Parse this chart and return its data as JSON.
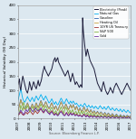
{
  "ylabel": "Historical Volatility (90 Day)",
  "xlabel": "Source: Bloomberg Finance L.P.",
  "ylim": [
    0,
    400
  ],
  "yticks": [
    0,
    50,
    100,
    150,
    200,
    250,
    300,
    350,
    400
  ],
  "xtick_labels": [
    "2007",
    "2008",
    "2009",
    "2010",
    "2011",
    "2012",
    "2013",
    "2014",
    "2015",
    "2016",
    "2017"
  ],
  "legend_entries": [
    {
      "label": "Electricity (Peak)",
      "color": "#1c1c3a",
      "lw": 0.7
    },
    {
      "label": "Natural Gas",
      "color": "#00aeef",
      "lw": 0.6
    },
    {
      "label": "Gasoline",
      "color": "#2e64b0",
      "lw": 0.6
    },
    {
      "label": "Heating Oil",
      "color": "#c8a040",
      "lw": 0.6
    },
    {
      "label": "10YR US Treasury",
      "color": "#a03030",
      "lw": 0.6
    },
    {
      "label": "S&P 500",
      "color": "#80b040",
      "lw": 0.6
    },
    {
      "label": "Gold",
      "color": "#6a30a0",
      "lw": 0.6
    }
  ],
  "plot_bg": "#dce8f0",
  "fig_bg": "#dce8f0",
  "grid_color": "#ffffff",
  "electricity": [
    120,
    130,
    140,
    110,
    100,
    120,
    135,
    150,
    140,
    130,
    120,
    110,
    100,
    95,
    90,
    100,
    110,
    130,
    120,
    110,
    100,
    110,
    120,
    130,
    125,
    115,
    110,
    105,
    115,
    125,
    135,
    120,
    115,
    125,
    130,
    140,
    155,
    165,
    175,
    185,
    175,
    170,
    165,
    160,
    155,
    150,
    155,
    160,
    165,
    170,
    175,
    185,
    195,
    205,
    210,
    215,
    200,
    205,
    210,
    215,
    200,
    195,
    190,
    185,
    180,
    175,
    170,
    165,
    160,
    155,
    150,
    155,
    160,
    165,
    170,
    160,
    150,
    140,
    130,
    140,
    150,
    160,
    150,
    140,
    130,
    120,
    125,
    130,
    125,
    120,
    115,
    110,
    115,
    120,
    115,
    110,
    355,
    310,
    285,
    260,
    240,
    220,
    230,
    245,
    235,
    225,
    215,
    205,
    200,
    195,
    190,
    185,
    180,
    175,
    165,
    155,
    145,
    135,
    125,
    120,
    115,
    110,
    105,
    100,
    95,
    110,
    120,
    130,
    120,
    110,
    100,
    95,
    90,
    85,
    90,
    95,
    100,
    110,
    105,
    100,
    95,
    90,
    100,
    110,
    115,
    120,
    125,
    120,
    115,
    110,
    105,
    100,
    95,
    90,
    85,
    90,
    95,
    100,
    105,
    110,
    115,
    120,
    125,
    120,
    115,
    110,
    105,
    100
  ],
  "natural_gas": [
    65,
    75,
    85,
    95,
    105,
    95,
    80,
    70,
    65,
    60,
    58,
    62,
    68,
    72,
    78,
    72,
    68,
    64,
    60,
    65,
    70,
    75,
    70,
    65,
    60,
    68,
    75,
    80,
    75,
    70,
    65,
    70,
    75,
    80,
    85,
    80,
    75,
    70,
    65,
    70,
    75,
    80,
    75,
    70,
    65,
    60,
    55,
    58,
    60,
    65,
    70,
    65,
    60,
    55,
    50,
    55,
    60,
    55,
    50,
    48,
    52,
    58,
    62,
    68,
    72,
    68,
    62,
    58,
    52,
    55,
    60,
    65,
    70,
    65,
    60,
    55,
    52,
    58,
    62,
    58,
    54,
    58,
    62,
    58,
    54,
    50,
    52,
    55,
    50,
    48,
    44,
    42,
    46,
    50,
    48,
    44,
    42,
    46,
    50,
    54,
    50,
    46,
    42,
    40,
    44,
    48,
    44,
    40,
    38,
    42,
    46,
    42,
    38,
    36,
    40,
    44,
    42,
    38,
    36,
    34,
    38,
    42,
    46,
    42,
    38,
    36,
    34,
    38,
    42,
    38,
    34,
    32,
    36,
    40,
    44,
    40,
    36,
    32,
    30,
    34,
    38,
    36,
    32,
    30,
    28,
    32,
    36,
    34,
    30,
    28,
    26,
    30,
    34,
    30,
    26,
    24,
    28,
    32,
    30,
    26,
    24,
    22,
    26,
    30,
    28,
    24,
    22,
    20
  ],
  "gasoline": [
    30,
    38,
    48,
    58,
    68,
    60,
    54,
    48,
    42,
    38,
    34,
    38,
    44,
    50,
    56,
    50,
    44,
    38,
    34,
    40,
    46,
    52,
    48,
    42,
    38,
    44,
    50,
    56,
    50,
    44,
    40,
    46,
    52,
    58,
    64,
    58,
    52,
    46,
    42,
    48,
    54,
    60,
    56,
    50,
    44,
    40,
    36,
    40,
    46,
    52,
    56,
    50,
    44,
    38,
    34,
    40,
    46,
    40,
    34,
    30,
    36,
    42,
    48,
    54,
    60,
    54,
    48,
    42,
    36,
    40,
    46,
    52,
    48,
    42,
    36,
    32,
    38,
    44,
    50,
    44,
    38,
    44,
    50,
    44,
    38,
    32,
    38,
    44,
    38,
    32,
    28,
    32,
    38,
    32,
    28,
    26,
    30,
    36,
    42,
    36,
    30,
    26,
    30,
    36,
    30,
    26,
    22,
    26,
    32,
    28,
    24,
    20,
    24,
    28,
    24,
    20,
    18,
    22,
    26,
    22,
    18,
    16,
    20,
    24,
    22,
    18,
    16,
    14,
    18,
    22,
    18,
    14,
    12,
    16,
    20,
    18,
    14,
    12,
    10,
    14,
    18,
    16,
    12,
    10,
    8,
    12,
    16,
    14,
    10,
    8,
    6,
    10,
    14,
    12,
    8,
    6,
    8,
    12,
    10,
    8,
    6,
    8,
    12,
    10,
    8,
    6,
    8,
    10
  ],
  "heating_oil": [
    28,
    36,
    46,
    56,
    66,
    58,
    52,
    46,
    40,
    36,
    32,
    36,
    42,
    48,
    54,
    48,
    42,
    36,
    32,
    38,
    44,
    50,
    46,
    40,
    36,
    42,
    48,
    54,
    48,
    42,
    38,
    44,
    50,
    56,
    62,
    56,
    50,
    44,
    40,
    46,
    52,
    58,
    54,
    48,
    42,
    38,
    34,
    38,
    44,
    50,
    54,
    48,
    42,
    36,
    32,
    38,
    44,
    38,
    32,
    28,
    34,
    40,
    46,
    52,
    58,
    52,
    46,
    40,
    34,
    38,
    44,
    50,
    46,
    40,
    34,
    30,
    36,
    42,
    48,
    42,
    36,
    42,
    48,
    42,
    36,
    30,
    36,
    42,
    36,
    30,
    26,
    30,
    36,
    30,
    26,
    24,
    28,
    34,
    40,
    34,
    28,
    24,
    28,
    34,
    28,
    24,
    20,
    24,
    30,
    26,
    22,
    18,
    22,
    26,
    22,
    18,
    16,
    20,
    24,
    20,
    16,
    14,
    18,
    22,
    20,
    16,
    14,
    12,
    16,
    20,
    16,
    12,
    10,
    14,
    18,
    16,
    12,
    10,
    8,
    12,
    16,
    14,
    10,
    8,
    6,
    10,
    14,
    12,
    8,
    6,
    4,
    8,
    12,
    10,
    6,
    4,
    6,
    10,
    8,
    6,
    4,
    6,
    10,
    8,
    6,
    4,
    6,
    8
  ],
  "treasury": [
    12,
    14,
    16,
    20,
    24,
    20,
    16,
    14,
    12,
    14,
    16,
    20,
    22,
    20,
    16,
    20,
    22,
    24,
    28,
    24,
    20,
    18,
    14,
    18,
    22,
    24,
    28,
    24,
    20,
    18,
    22,
    24,
    28,
    32,
    34,
    30,
    26,
    22,
    20,
    24,
    28,
    32,
    30,
    26,
    22,
    20,
    18,
    20,
    22,
    26,
    28,
    24,
    20,
    16,
    14,
    16,
    20,
    18,
    14,
    12,
    14,
    18,
    22,
    24,
    28,
    24,
    20,
    16,
    14,
    12,
    14,
    18,
    22,
    18,
    14,
    12,
    14,
    18,
    22,
    18,
    14,
    16,
    20,
    18,
    14,
    12,
    14,
    18,
    14,
    12,
    10,
    12,
    14,
    12,
    10,
    8,
    10,
    14,
    16,
    14,
    10,
    8,
    10,
    14,
    10,
    8,
    6,
    8,
    12,
    10,
    8,
    6,
    8,
    12,
    10,
    8,
    6,
    6,
    10,
    8,
    6,
    6,
    8,
    10,
    8,
    6,
    6,
    4,
    8,
    10,
    8,
    6,
    4,
    6,
    10,
    8,
    6,
    4,
    4,
    6,
    10,
    8,
    6,
    4,
    4,
    6,
    8,
    6,
    4,
    4,
    2,
    6,
    8,
    6,
    4,
    4,
    2,
    6,
    8,
    6,
    4,
    4,
    2,
    6,
    8,
    6,
    4,
    4
  ],
  "sp500": [
    14,
    18,
    22,
    32,
    48,
    40,
    34,
    28,
    58,
    52,
    46,
    40,
    34,
    40,
    46,
    40,
    34,
    28,
    24,
    30,
    36,
    42,
    38,
    32,
    26,
    32,
    38,
    44,
    38,
    32,
    28,
    34,
    40,
    46,
    52,
    46,
    40,
    34,
    28,
    34,
    40,
    46,
    42,
    36,
    30,
    26,
    22,
    26,
    32,
    38,
    40,
    34,
    28,
    22,
    18,
    22,
    28,
    24,
    18,
    14,
    18,
    24,
    30,
    36,
    42,
    36,
    30,
    24,
    18,
    28,
    34,
    40,
    36,
    30,
    24,
    18,
    24,
    30,
    26,
    20,
    26,
    32,
    26,
    20,
    16,
    22,
    26,
    20,
    16,
    20,
    26,
    20,
    16,
    20,
    26,
    20,
    16,
    22,
    26,
    20,
    16,
    14,
    18,
    22,
    18,
    14,
    10,
    14,
    20,
    16,
    12,
    10,
    14,
    18,
    14,
    10,
    8,
    10,
    14,
    12,
    8,
    6,
    10,
    14,
    10,
    8,
    6,
    6,
    10,
    12,
    10,
    8,
    6,
    6,
    10,
    10,
    8,
    6,
    4,
    6,
    10,
    8,
    6,
    4,
    4,
    6,
    10,
    8,
    6,
    4,
    2,
    6,
    10,
    8,
    6,
    4,
    2,
    6,
    8,
    6,
    4,
    4,
    2,
    4,
    8,
    6,
    4,
    2
  ],
  "gold": [
    14,
    16,
    20,
    24,
    30,
    26,
    22,
    18,
    14,
    18,
    22,
    28,
    32,
    28,
    24,
    28,
    32,
    34,
    38,
    34,
    30,
    28,
    24,
    28,
    32,
    34,
    38,
    34,
    30,
    28,
    26,
    30,
    32,
    36,
    38,
    32,
    28,
    26,
    22,
    26,
    30,
    32,
    30,
    26,
    22,
    20,
    18,
    14,
    18,
    22,
    24,
    20,
    18,
    14,
    12,
    14,
    18,
    16,
    12,
    10,
    12,
    16,
    20,
    22,
    24,
    22,
    18,
    14,
    12,
    10,
    12,
    16,
    20,
    16,
    12,
    10,
    12,
    16,
    20,
    16,
    12,
    14,
    18,
    16,
    12,
    10,
    12,
    14,
    12,
    10,
    8,
    10,
    12,
    10,
    8,
    6,
    8,
    12,
    14,
    12,
    8,
    6,
    8,
    12,
    8,
    6,
    4,
    6,
    10,
    8,
    6,
    4,
    6,
    10,
    8,
    6,
    4,
    4,
    8,
    8,
    6,
    4,
    4,
    6,
    8,
    6,
    4,
    4,
    6,
    8,
    6,
    4,
    4,
    4,
    8,
    6,
    4,
    4,
    2,
    4,
    8,
    6,
    4,
    4,
    2,
    4,
    6,
    6,
    4,
    2,
    2,
    4,
    6,
    6,
    4,
    2,
    2,
    4,
    6,
    4,
    2,
    2,
    2,
    4,
    6,
    4,
    2,
    2
  ]
}
